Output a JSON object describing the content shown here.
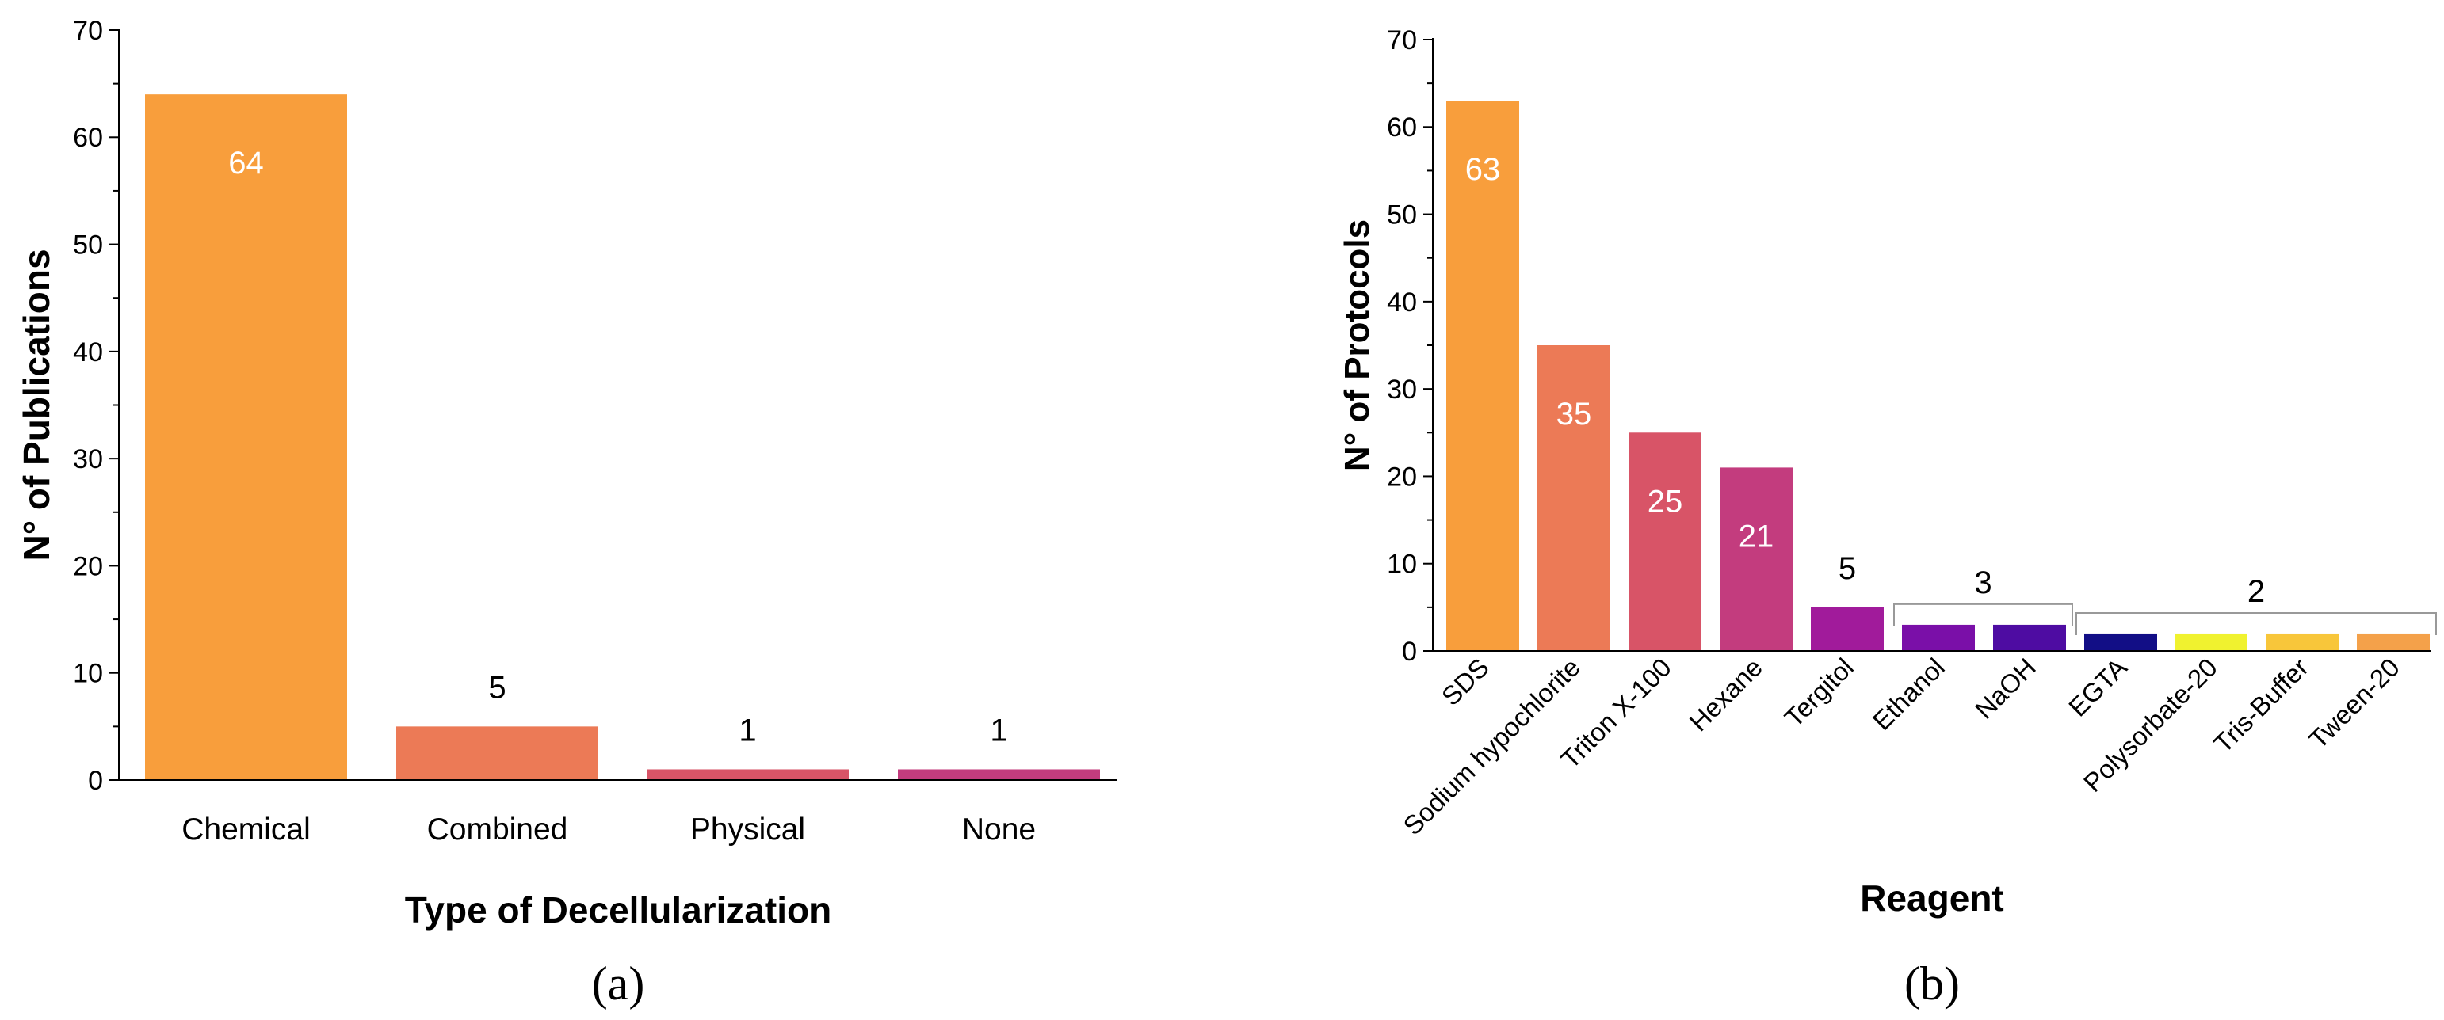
{
  "chart_data": [
    {
      "type": "bar",
      "panel_label": "(a)",
      "xlabel": "Type of Decellularization",
      "ylabel": "N° of Publications",
      "ylim": [
        0,
        70
      ],
      "yticks": [
        0,
        10,
        20,
        30,
        40,
        50,
        60,
        70
      ],
      "yticks_text": [
        "0",
        "10",
        "20",
        "30",
        "40",
        "50",
        "60",
        "70"
      ],
      "categories": [
        "Chemical",
        "Combined",
        "Physical",
        "None"
      ],
      "values": [
        64,
        5,
        1,
        1
      ],
      "labels": [
        "64",
        "5",
        "1",
        "1"
      ],
      "label_inside": [
        true,
        false,
        false,
        false
      ],
      "colors": [
        "#F89E3C",
        "#EC7A56",
        "#D85467",
        "#C33C7E"
      ]
    },
    {
      "type": "bar",
      "panel_label": "(b)",
      "xlabel": "Reagent",
      "ylabel": "N° of Protocols",
      "ylim": [
        0,
        70
      ],
      "yticks": [
        0,
        10,
        20,
        30,
        40,
        50,
        60,
        70
      ],
      "yticks_text": [
        "0",
        "10",
        "20",
        "30",
        "40",
        "50",
        "60",
        "70"
      ],
      "categories": [
        "SDS",
        "Sodium hypochlorite",
        "Triton X-100",
        "Hexane",
        "Tergitol",
        "Ethanol",
        "NaOH",
        "EGTA",
        "Polysorbate-20",
        "Tris-Buffer",
        "Tween-20"
      ],
      "values": [
        63,
        35,
        25,
        21,
        5,
        3,
        3,
        2,
        2,
        2,
        2
      ],
      "labels": [
        "63",
        "35",
        "25",
        "21",
        "5",
        null,
        null,
        null,
        null,
        null,
        null
      ],
      "label_inside": [
        true,
        true,
        true,
        true,
        false,
        false,
        false,
        false,
        false,
        false,
        false
      ],
      "colors": [
        "#F89E3C",
        "#EC7A56",
        "#D85467",
        "#C33C7E",
        "#A11B9B",
        "#7A0FA8",
        "#4E0CA2",
        "#120E86",
        "#F0F22F",
        "#F8C63A",
        "#F4A14A"
      ],
      "group_annotations": [
        {
          "from": 5,
          "to": 6,
          "label": "3"
        },
        {
          "from": 7,
          "to": 10,
          "label": "2"
        }
      ]
    }
  ]
}
